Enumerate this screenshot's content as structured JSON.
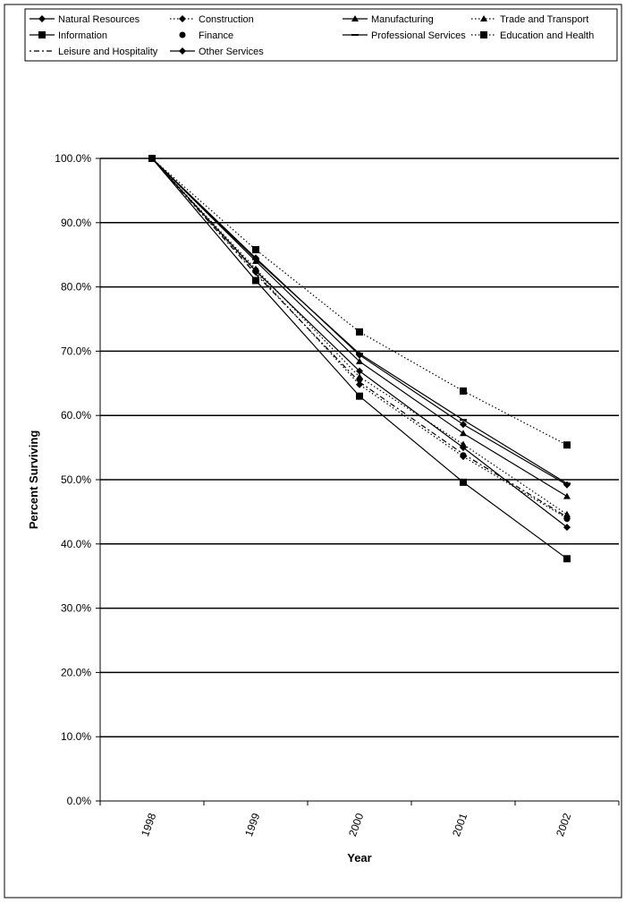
{
  "chart_data": {
    "type": "line",
    "title": "",
    "xlabel": "Year",
    "ylabel": "Percent Surviving",
    "x": [
      "1998",
      "1999",
      "2000",
      "2001",
      "2002"
    ],
    "ylim": [
      0,
      100
    ],
    "yticks": [
      "0.0%",
      "10.0%",
      "20.0%",
      "30.0%",
      "40.0%",
      "50.0%",
      "60.0%",
      "70.0%",
      "80.0%",
      "90.0%",
      "100.0%"
    ],
    "grid": true,
    "legend_position": "top",
    "series": [
      {
        "name": "Natural Resources",
        "line": "solid",
        "marker": "diamond",
        "values": [
          100,
          82.5,
          66.9,
          55.0,
          42.6
        ]
      },
      {
        "name": "Construction",
        "line": "dotted",
        "marker": "diamond",
        "values": [
          100,
          82.3,
          64.8,
          53.6,
          44.0
        ]
      },
      {
        "name": "Manufacturing",
        "line": "solid",
        "marker": "triangle",
        "values": [
          100,
          84.0,
          68.4,
          57.2,
          47.4
        ]
      },
      {
        "name": "Trade and Transport",
        "line": "dotted",
        "marker": "triangle",
        "values": [
          100,
          82.8,
          66.0,
          55.5,
          44.6
        ]
      },
      {
        "name": "Information",
        "line": "solid",
        "marker": "square",
        "values": [
          100,
          81.0,
          63.0,
          49.6,
          37.7
        ]
      },
      {
        "name": "Finance",
        "line": "none",
        "marker": "circle",
        "values": [
          100,
          82.6,
          65.6,
          53.8,
          43.9
        ]
      },
      {
        "name": "Professional Services",
        "line": "solid",
        "marker": "dash",
        "values": [
          100,
          84.3,
          69.6,
          59.3,
          49.4
        ]
      },
      {
        "name": "Education and Health",
        "line": "dotted",
        "marker": "square",
        "values": [
          100,
          85.8,
          73.0,
          63.8,
          55.4
        ]
      },
      {
        "name": "Leisure and Hospitality",
        "line": "dashdot",
        "marker": "none",
        "values": [
          100,
          82.0,
          65.2,
          54.0,
          44.2
        ]
      },
      {
        "name": "Other Services",
        "line": "solid",
        "marker": "diamond",
        "values": [
          100,
          84.5,
          69.4,
          58.6,
          49.2
        ]
      }
    ]
  }
}
